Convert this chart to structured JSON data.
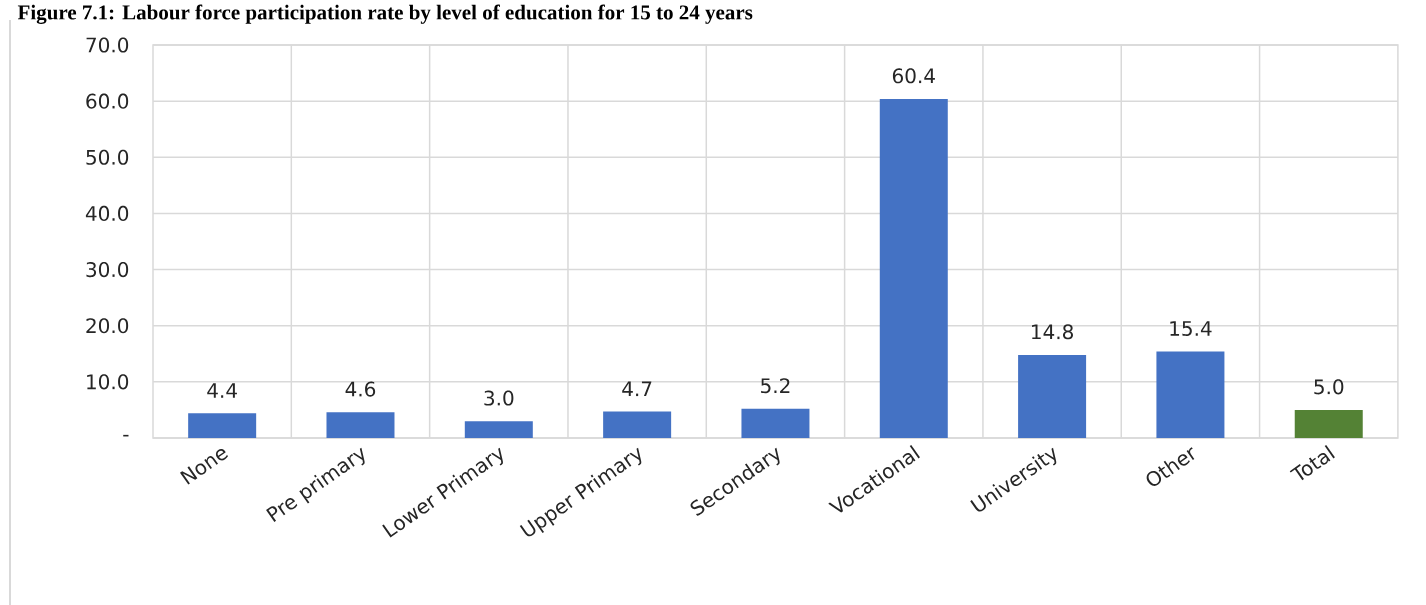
{
  "chart_data": {
    "type": "bar",
    "title": "Figure 7.1: Labour force participation rate by level of education for 15 to 24 years",
    "categories": [
      "None",
      "Pre primary",
      "Lower Primary",
      "Upper Primary",
      "Secondary",
      "Vocational",
      "University",
      "Other",
      "Total"
    ],
    "values": [
      4.4,
      4.6,
      3.0,
      4.7,
      5.2,
      60.4,
      14.8,
      15.4,
      5.0
    ],
    "colors": [
      "#4472c4",
      "#4472c4",
      "#4472c4",
      "#4472c4",
      "#4472c4",
      "#4472c4",
      "#4472c4",
      "#4472c4",
      "#548235"
    ],
    "ylim": [
      0,
      70
    ],
    "yticks": [
      {
        "value": 0,
        "label": "-"
      },
      {
        "value": 10,
        "label": "10.0"
      },
      {
        "value": 20,
        "label": "20.0"
      },
      {
        "value": 30,
        "label": "30.0"
      },
      {
        "value": 40,
        "label": "40.0"
      },
      {
        "value": 50,
        "label": "50.0"
      },
      {
        "value": 60,
        "label": "60.0"
      },
      {
        "value": 70,
        "label": "70.0"
      }
    ],
    "value_labels": [
      "4.4",
      "4.6",
      "3.0",
      "4.7",
      "5.2",
      "60.4",
      "14.8",
      "15.4",
      "5.0"
    ],
    "grid": true
  }
}
